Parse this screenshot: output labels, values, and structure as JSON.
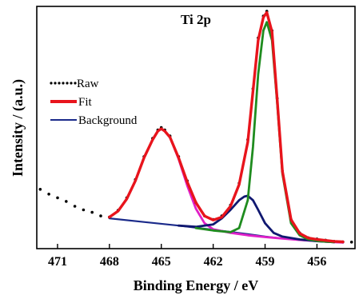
{
  "chart_data": {
    "type": "line",
    "title": "Ti 2p",
    "xlabel": "Binding Energy / eV",
    "ylabel": "Intensity / (a.u.)",
    "xlim": [
      472.2,
      453.8
    ],
    "ylim": [
      0,
      1.0
    ],
    "x_reversed": true,
    "x_ticks": [
      471,
      468,
      465,
      462,
      459,
      456
    ],
    "y_ticks_shown": false,
    "grid": false,
    "legend_position": "top-left",
    "series": [
      {
        "name": "Raw",
        "kind": "scatter",
        "color": "#000000",
        "x": [
          472.0,
          471.5,
          471.0,
          470.5,
          470.0,
          469.5,
          469.0,
          468.5,
          468.0,
          467.5,
          467.0,
          466.5,
          466.0,
          465.5,
          465.2,
          465.0,
          464.8,
          464.5,
          464.0,
          463.5,
          463.0,
          462.5,
          462.0,
          461.5,
          461.0,
          460.5,
          460.0,
          459.7,
          459.4,
          459.1,
          458.9,
          458.6,
          458.3,
          458.0,
          457.5,
          457.0,
          456.5,
          456.0,
          455.5,
          455.0,
          454.5,
          454.0
        ],
        "y": [
          0.245,
          0.225,
          0.21,
          0.195,
          0.175,
          0.16,
          0.15,
          0.135,
          0.13,
          0.158,
          0.21,
          0.285,
          0.38,
          0.455,
          0.49,
          0.5,
          0.49,
          0.465,
          0.38,
          0.28,
          0.19,
          0.135,
          0.12,
          0.135,
          0.18,
          0.27,
          0.45,
          0.66,
          0.87,
          0.96,
          0.98,
          0.9,
          0.62,
          0.32,
          0.12,
          0.065,
          0.045,
          0.04,
          0.035,
          0.03,
          0.028,
          0.027
        ]
      },
      {
        "name": "Fit",
        "kind": "line",
        "color": "#e8141c",
        "x": [
          468.0,
          467.5,
          467.0,
          466.5,
          466.0,
          465.5,
          465.2,
          465.0,
          464.8,
          464.5,
          464.0,
          463.5,
          463.0,
          462.5,
          462.0,
          461.5,
          461.0,
          460.5,
          460.0,
          459.7,
          459.4,
          459.1,
          458.9,
          458.6,
          458.3,
          458.0,
          457.5,
          457.0,
          456.5,
          456.0,
          455.5,
          455.0,
          454.5
        ],
        "y": [
          0.13,
          0.155,
          0.205,
          0.28,
          0.375,
          0.45,
          0.485,
          0.495,
          0.485,
          0.46,
          0.375,
          0.275,
          0.19,
          0.135,
          0.118,
          0.13,
          0.175,
          0.265,
          0.44,
          0.65,
          0.86,
          0.955,
          0.975,
          0.895,
          0.615,
          0.32,
          0.12,
          0.063,
          0.044,
          0.038,
          0.034,
          0.03,
          0.028
        ]
      },
      {
        "name": "Background",
        "kind": "line",
        "color": "#1a2a8a",
        "x": [
          468.0,
          466.0,
          464.0,
          462.0,
          460.0,
          459.0,
          458.0,
          457.0,
          456.0,
          455.0,
          454.5
        ],
        "y": [
          0.125,
          0.11,
          0.095,
          0.078,
          0.06,
          0.05,
          0.042,
          0.036,
          0.031,
          0.027,
          0.025
        ]
      },
      {
        "kind": "line",
        "color": "#e020c8",
        "x": [
          468.0,
          467.5,
          467.0,
          466.5,
          466.0,
          465.5,
          465.2,
          465.0,
          464.8,
          464.5,
          464.0,
          463.5,
          463.0,
          462.5,
          462.0,
          461.0,
          460.0,
          459.0,
          458.0,
          457.0,
          456.0,
          455.0,
          454.5
        ],
        "y": [
          0.13,
          0.155,
          0.205,
          0.28,
          0.375,
          0.45,
          0.485,
          0.495,
          0.485,
          0.46,
          0.37,
          0.26,
          0.165,
          0.105,
          0.08,
          0.065,
          0.055,
          0.048,
          0.042,
          0.036,
          0.031,
          0.027,
          0.025
        ]
      },
      {
        "kind": "line",
        "color": "#1f8c1f",
        "x": [
          463.0,
          462.0,
          461.0,
          460.5,
          460.0,
          459.7,
          459.4,
          459.1,
          458.9,
          458.6,
          458.3,
          458.0,
          457.5,
          457.0,
          456.5,
          456.0,
          455.5,
          455.0
        ],
        "y": [
          0.085,
          0.075,
          0.068,
          0.085,
          0.2,
          0.42,
          0.72,
          0.9,
          0.935,
          0.86,
          0.6,
          0.31,
          0.105,
          0.055,
          0.038,
          0.032,
          0.029,
          0.027
        ]
      },
      {
        "kind": "line",
        "color": "#101870",
        "x": [
          464.0,
          463.0,
          462.0,
          461.5,
          461.0,
          460.5,
          460.2,
          460.0,
          459.7,
          459.4,
          459.0,
          458.5,
          458.0,
          457.0,
          456.0,
          455.0
        ],
        "y": [
          0.095,
          0.09,
          0.1,
          0.125,
          0.16,
          0.2,
          0.215,
          0.218,
          0.2,
          0.16,
          0.105,
          0.065,
          0.05,
          0.038,
          0.031,
          0.027
        ]
      }
    ]
  }
}
